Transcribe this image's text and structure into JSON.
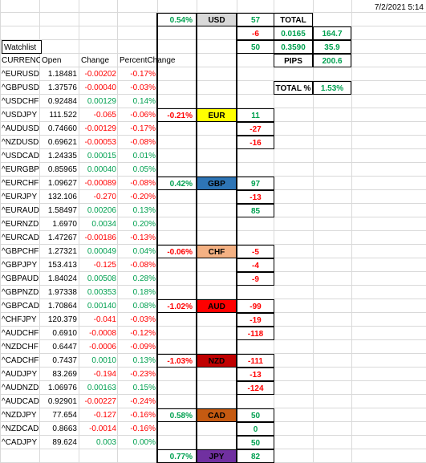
{
  "timestamp": "7/2/2021 5:14",
  "watchlist_title": "Watchlist",
  "headers": [
    "CURRENCY",
    "Open",
    "Change",
    "PercentChange"
  ],
  "rows": [
    [
      "^EURUSD",
      "1.18481",
      "-0.00202",
      "-0.17%"
    ],
    [
      "^GBPUSD",
      "1.37576",
      "-0.00040",
      "-0.03%"
    ],
    [
      "^USDCHF",
      "0.92484",
      "0.00129",
      "0.14%"
    ],
    [
      "^USDJPY",
      "111.522",
      "-0.065",
      "-0.06%"
    ],
    [
      "^AUDUSD",
      "0.74660",
      "-0.00129",
      "-0.17%"
    ],
    [
      "^NZDUSD",
      "0.69621",
      "-0.00053",
      "-0.08%"
    ],
    [
      "^USDCAD",
      "1.24335",
      "0.00015",
      "0.01%"
    ],
    [
      "^EURGBP",
      "0.85965",
      "0.00040",
      "0.05%"
    ],
    [
      "^EURCHF",
      "1.09627",
      "-0.00089",
      "-0.08%"
    ],
    [
      "^EURJPY",
      "132.106",
      "-0.270",
      "-0.20%"
    ],
    [
      "^EURAUD",
      "1.58497",
      "0.00206",
      "0.13%"
    ],
    [
      "^EURNZD",
      "1.6970",
      "0.0034",
      "0.20%"
    ],
    [
      "^EURCAD",
      "1.47267",
      "-0.00186",
      "-0.13%"
    ],
    [
      "^GBPCHF",
      "1.27321",
      "0.00049",
      "0.04%"
    ],
    [
      "^GBPJPY",
      "153.413",
      "-0.125",
      "-0.08%"
    ],
    [
      "^GBPAUD",
      "1.84024",
      "0.00508",
      "0.28%"
    ],
    [
      "^GBPNZD",
      "1.97338",
      "0.00353",
      "0.18%"
    ],
    [
      "^GBPCAD",
      "1.70864",
      "0.00140",
      "0.08%"
    ],
    [
      "^CHFJPY",
      "120.379",
      "-0.041",
      "-0.03%"
    ],
    [
      "^AUDCHF",
      "0.6910",
      "-0.0008",
      "-0.12%"
    ],
    [
      "^NZDCHF",
      "0.6447",
      "-0.0006",
      "-0.09%"
    ],
    [
      "^CADCHF",
      "0.7437",
      "0.0010",
      "0.13%"
    ],
    [
      "^AUDJPY",
      "83.269",
      "-0.194",
      "-0.23%"
    ],
    [
      "^AUDNZD",
      "1.06976",
      "0.00163",
      "0.15%"
    ],
    [
      "^AUDCAD",
      "0.92901",
      "-0.00227",
      "-0.24%"
    ],
    [
      "^NZDJPY",
      "77.654",
      "-0.127",
      "-0.16%"
    ],
    [
      "^NZDCAD",
      "0.8663",
      "-0.0014",
      "-0.16%"
    ],
    [
      "^CADJPY",
      "89.624",
      "0.003",
      "0.00%"
    ]
  ],
  "currencies": [
    {
      "code": "USD",
      "pct": "0.54%",
      "pips": [
        "57",
        "-6",
        "50"
      ],
      "color": "#d9d9d9",
      "text": "#000000"
    },
    {
      "code": "EUR",
      "pct": "-0.21%",
      "pips": [
        "11",
        "-27",
        "-16"
      ],
      "color": "#ffff00",
      "text": "#000000"
    },
    {
      "code": "GBP",
      "pct": "0.42%",
      "pips": [
        "97",
        "-13",
        "85"
      ],
      "color": "#2e75b6",
      "text": "#000000"
    },
    {
      "code": "CHF",
      "pct": "-0.06%",
      "pips": [
        "-5",
        "-4",
        "-9"
      ],
      "color": "#f4b183",
      "text": "#000000"
    },
    {
      "code": "AUD",
      "pct": "-1.02%",
      "pips": [
        "-99",
        "-19",
        "-118"
      ],
      "color": "#ff0000",
      "text": "#000000"
    },
    {
      "code": "NZD",
      "pct": "-1.03%",
      "pips": [
        "-111",
        "-13",
        "-124"
      ],
      "color": "#c00000",
      "text": "#000000"
    },
    {
      "code": "CAD",
      "pct": "0.58%",
      "pips": [
        "50",
        "0",
        "50"
      ],
      "color": "#c55a11",
      "text": "#000000"
    },
    {
      "code": "JPY",
      "pct": "0.77%",
      "pips": [
        "82"
      ],
      "color": "#7030a0",
      "text": "#000000"
    }
  ],
  "totals": {
    "total_label": "TOTAL",
    "total_a": "0.0165",
    "total_b": "164.7",
    "row2_a": "0.3590",
    "row2_b": "35.9",
    "pips_label": "PIPS",
    "pips_value": "200.6",
    "total_pct_label": "TOTAL %",
    "total_pct_value": "1.53%"
  },
  "colors": {
    "red": "#ff0000",
    "green": "#00a050",
    "gridline": "#d9d9d9"
  }
}
